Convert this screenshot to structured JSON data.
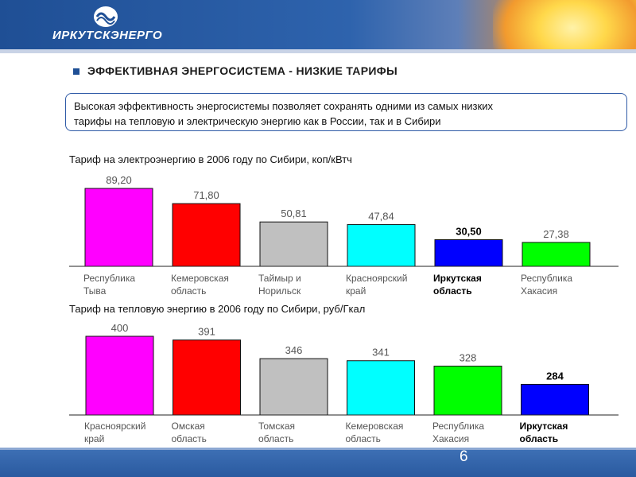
{
  "brand": {
    "name": "ИРКУТСКЭНЕРГО",
    "accent": "#1f4f95"
  },
  "slide": {
    "title": "ЭФФЕКТИВНАЯ ЭНЕРГОСИСТЕМА - НИЗКИЕ ТАРИФЫ",
    "summary_line1": "Высокая эффективность энергосистемы позволяет сохранять одними из самых низких",
    "summary_line2": "тарифы на тепловую и электрическую энергию как в России, так и в Сибири",
    "page_number": "6"
  },
  "chart_data": [
    {
      "type": "bar",
      "title": "Тариф на электроэнергию в 2006 году по Сибири, коп/кВтч",
      "categories": [
        [
          "Республика",
          "Тыва"
        ],
        [
          "Кемеровская",
          "область"
        ],
        [
          "Таймыр и",
          "Норильск"
        ],
        [
          "Красноярский",
          "край"
        ],
        [
          "Иркутская",
          "область"
        ],
        [
          "Республика",
          "Хакасия"
        ]
      ],
      "values": [
        89.2,
        71.8,
        50.81,
        47.84,
        30.5,
        27.38
      ],
      "value_labels": [
        "89,20",
        "71,80",
        "50,81",
        "47,84",
        "30,50",
        "27,38"
      ],
      "colors": [
        "#ff00ff",
        "#ff0000",
        "#c0c0c0",
        "#00ffff",
        "#0000ff",
        "#00ff00"
      ],
      "highlight_index": 4,
      "ylim": [
        0,
        89.2
      ]
    },
    {
      "type": "bar",
      "title": "Тариф на тепловую энергию в 2006 году по Сибири, руб/Гкал",
      "categories": [
        [
          "Красноярский",
          "край"
        ],
        [
          "Омская",
          "область"
        ],
        [
          "Томская",
          "область"
        ],
        [
          "Кемеровская",
          "область"
        ],
        [
          "Республика",
          "Хакасия"
        ],
        [
          "Иркутская",
          "область"
        ]
      ],
      "values": [
        400,
        391,
        346,
        341,
        328,
        284
      ],
      "value_labels": [
        "400",
        "391",
        "346",
        "341",
        "328",
        "284"
      ],
      "colors": [
        "#ff00ff",
        "#ff0000",
        "#c0c0c0",
        "#00ffff",
        "#00ff00",
        "#0000ff"
      ],
      "highlight_index": 5,
      "ylim": [
        210,
        400
      ]
    }
  ]
}
